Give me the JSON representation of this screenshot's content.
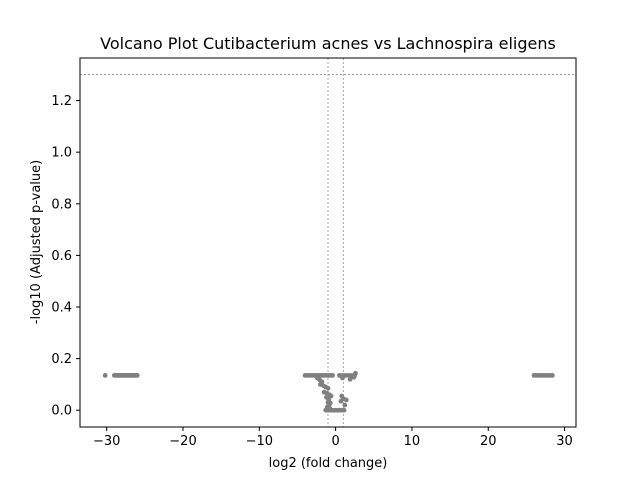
{
  "chart_data": {
    "type": "scatter",
    "title": "Volcano Plot Cutibacterium acnes vs Lachnospira eligens",
    "xlabel": "log2 (fold change)",
    "ylabel": "-log10 (Adjusted p-value)",
    "xlim": [
      -33.5,
      31.5
    ],
    "ylim": [
      -0.065,
      1.365
    ],
    "xticks": [
      -30,
      -20,
      -10,
      0,
      10,
      20,
      30
    ],
    "xtick_labels": [
      "−30",
      "−20",
      "−10",
      "0",
      "10",
      "20",
      "30"
    ],
    "yticks": [
      0.0,
      0.2,
      0.4,
      0.6,
      0.8,
      1.0,
      1.2
    ],
    "ytick_labels": [
      "0.0",
      "0.2",
      "0.4",
      "0.6",
      "0.8",
      "1.0",
      "1.2"
    ],
    "grid": false,
    "thresholds": {
      "log2fc": [
        -1,
        1
      ],
      "neg_log10_padj": 1.301
    },
    "point_color": "#808080",
    "threshold_line_color": "#808080",
    "points": [
      {
        "x": -30.2,
        "y": 0.135
      },
      {
        "x": -29.0,
        "y": 0.135
      },
      {
        "x": -28.8,
        "y": 0.135
      },
      {
        "x": -28.6,
        "y": 0.135
      },
      {
        "x": -28.4,
        "y": 0.135
      },
      {
        "x": -28.2,
        "y": 0.135
      },
      {
        "x": -28.0,
        "y": 0.135
      },
      {
        "x": -27.8,
        "y": 0.135
      },
      {
        "x": -27.6,
        "y": 0.135
      },
      {
        "x": -27.4,
        "y": 0.135
      },
      {
        "x": -27.2,
        "y": 0.135
      },
      {
        "x": -27.0,
        "y": 0.135
      },
      {
        "x": -26.8,
        "y": 0.135
      },
      {
        "x": -26.6,
        "y": 0.135
      },
      {
        "x": -26.4,
        "y": 0.135
      },
      {
        "x": -26.2,
        "y": 0.135
      },
      {
        "x": -26.0,
        "y": 0.135
      },
      {
        "x": -4.0,
        "y": 0.135
      },
      {
        "x": -3.7,
        "y": 0.135
      },
      {
        "x": -3.4,
        "y": 0.135
      },
      {
        "x": -3.1,
        "y": 0.135
      },
      {
        "x": -2.8,
        "y": 0.135
      },
      {
        "x": -2.5,
        "y": 0.135
      },
      {
        "x": -2.2,
        "y": 0.135
      },
      {
        "x": -1.9,
        "y": 0.135
      },
      {
        "x": -1.6,
        "y": 0.135
      },
      {
        "x": -1.3,
        "y": 0.135
      },
      {
        "x": -1.0,
        "y": 0.135
      },
      {
        "x": -0.7,
        "y": 0.135
      },
      {
        "x": -0.4,
        "y": 0.135
      },
      {
        "x": -2.4,
        "y": 0.125
      },
      {
        "x": -2.1,
        "y": 0.118
      },
      {
        "x": -1.8,
        "y": 0.11
      },
      {
        "x": -2.0,
        "y": 0.1
      },
      {
        "x": -1.6,
        "y": 0.095
      },
      {
        "x": -1.3,
        "y": 0.09
      },
      {
        "x": -1.0,
        "y": 0.085
      },
      {
        "x": -1.5,
        "y": 0.07
      },
      {
        "x": -1.1,
        "y": 0.065
      },
      {
        "x": -0.8,
        "y": 0.06
      },
      {
        "x": -0.6,
        "y": 0.055
      },
      {
        "x": -1.2,
        "y": 0.05
      },
      {
        "x": -0.9,
        "y": 0.042
      },
      {
        "x": -1.0,
        "y": 0.03
      },
      {
        "x": -0.7,
        "y": 0.028
      },
      {
        "x": -0.9,
        "y": 0.02
      },
      {
        "x": -1.1,
        "y": 0.012
      },
      {
        "x": -0.8,
        "y": 0.01
      },
      {
        "x": -1.3,
        "y": 0.0
      },
      {
        "x": -1.0,
        "y": 0.0
      },
      {
        "x": -0.7,
        "y": 0.0
      },
      {
        "x": -0.4,
        "y": 0.0
      },
      {
        "x": -0.1,
        "y": 0.0
      },
      {
        "x": 0.2,
        "y": 0.0
      },
      {
        "x": 0.5,
        "y": 0.0
      },
      {
        "x": 0.8,
        "y": 0.0
      },
      {
        "x": 1.1,
        "y": 0.0
      },
      {
        "x": 0.8,
        "y": 0.055
      },
      {
        "x": 1.0,
        "y": 0.045
      },
      {
        "x": 0.7,
        "y": 0.035
      },
      {
        "x": 1.2,
        "y": 0.02
      },
      {
        "x": 1.4,
        "y": 0.04
      },
      {
        "x": 0.9,
        "y": 0.125
      },
      {
        "x": 1.9,
        "y": 0.12
      },
      {
        "x": 2.4,
        "y": 0.128
      },
      {
        "x": 2.6,
        "y": 0.143
      },
      {
        "x": 0.5,
        "y": 0.135
      },
      {
        "x": 0.9,
        "y": 0.135
      },
      {
        "x": 1.3,
        "y": 0.135
      },
      {
        "x": 1.7,
        "y": 0.135
      },
      {
        "x": 2.1,
        "y": 0.135
      },
      {
        "x": 2.5,
        "y": 0.135
      },
      {
        "x": 26.0,
        "y": 0.135
      },
      {
        "x": 26.3,
        "y": 0.135
      },
      {
        "x": 26.6,
        "y": 0.135
      },
      {
        "x": 26.9,
        "y": 0.135
      },
      {
        "x": 27.2,
        "y": 0.135
      },
      {
        "x": 27.5,
        "y": 0.135
      },
      {
        "x": 27.8,
        "y": 0.135
      },
      {
        "x": 28.1,
        "y": 0.135
      },
      {
        "x": 28.4,
        "y": 0.135
      }
    ]
  }
}
